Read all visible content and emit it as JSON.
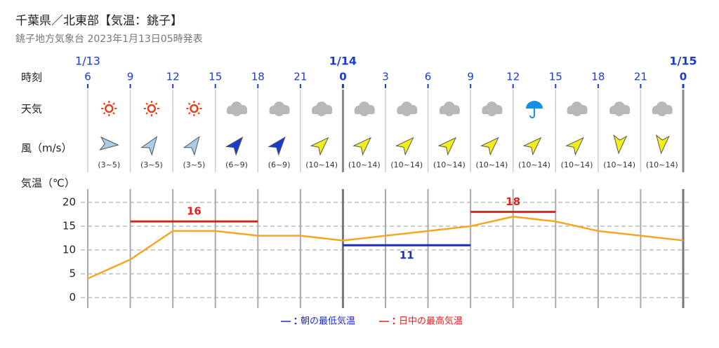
{
  "title": "千葉県／北東部【気温：銚子】",
  "subtitle": "銚子地方気象台 2023年1月13日05時発表",
  "chart_data": {
    "type": "line",
    "row_labels": {
      "time": "時刻",
      "weather": "天気",
      "wind": "風（m/s）",
      "temp": "気温（℃）"
    },
    "dates": [
      "1/13",
      null,
      null,
      null,
      null,
      null,
      "1/14",
      null,
      null,
      null,
      null,
      null,
      null,
      null,
      "1/15"
    ],
    "x": [
      6,
      9,
      12,
      15,
      18,
      21,
      0,
      3,
      6,
      9,
      12,
      15,
      18,
      21,
      0
    ],
    "wind_ranges": [
      "(3~5)",
      "(3~5)",
      "(3~5)",
      "(6~9)",
      "(6~9)",
      "(10~14)",
      "(10~14)",
      "(10~14)",
      "(10~14)",
      "(10~14)",
      "(10~14)",
      "(10~14)",
      "(10~14)",
      "(10~14)"
    ],
    "series": [
      {
        "color": "#f5a623",
        "values": [
          4,
          8,
          14,
          14,
          13,
          13,
          12,
          13,
          14,
          15,
          17,
          16,
          14,
          13,
          12
        ]
      },
      {
        "name": "朝の最低気温",
        "color": "#1a2bc4",
        "values": [
          null,
          null,
          null,
          null,
          null,
          null,
          11,
          11,
          11,
          11,
          null,
          null,
          null,
          null,
          null
        ]
      },
      {
        "name": "日中の最高気温",
        "color": "#dd2222",
        "values": [
          null,
          16,
          16,
          16,
          16,
          null,
          null,
          null,
          null,
          18,
          18,
          18,
          null,
          null,
          null
        ]
      }
    ],
    "ylim": [
      -2.2,
      22.8
    ],
    "yticks": [
      0,
      5,
      10,
      15,
      20
    ],
    "grid": true
  }
}
